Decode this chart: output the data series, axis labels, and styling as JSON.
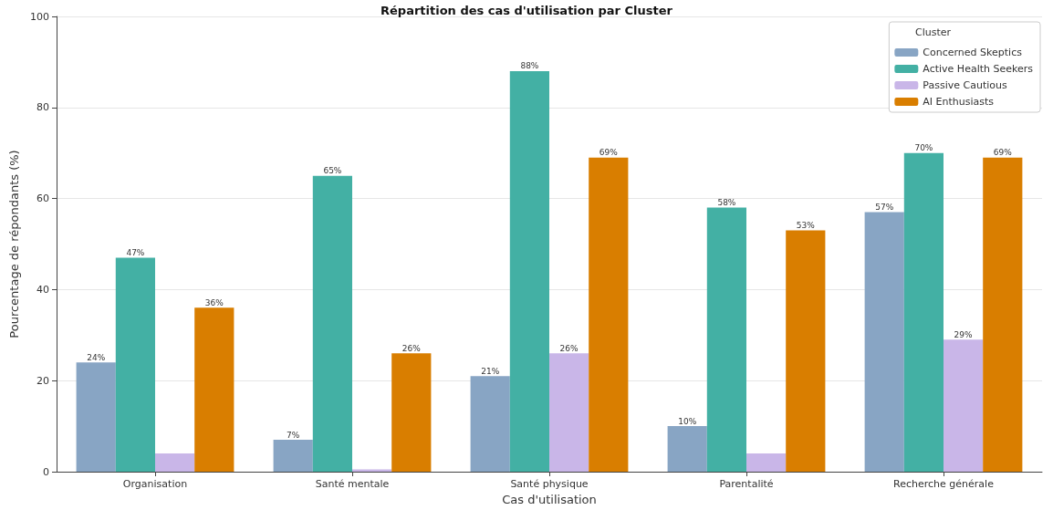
{
  "chart_data": {
    "type": "bar",
    "title": "Répartition des cas d'utilisation par Cluster",
    "xlabel": "Cas d'utilisation",
    "ylabel": "Pourcentage de répondants (%)",
    "legend_title": "Cluster",
    "categories": [
      "Organisation",
      "Santé mentale",
      "Santé physique",
      "Parentalité",
      "Recherche générale"
    ],
    "series": [
      {
        "name": "Concerned Skeptics",
        "color": "#88a5c4",
        "values": [
          24,
          7,
          21,
          10,
          57
        ],
        "value_labels": [
          "24%",
          "7%",
          "21%",
          "10%",
          "57%"
        ]
      },
      {
        "name": "Active Health Seekers",
        "color": "#43b0a4",
        "values": [
          47,
          65,
          88,
          58,
          70
        ],
        "value_labels": [
          "47%",
          "65%",
          "88%",
          "58%",
          "70%"
        ]
      },
      {
        "name": "Passive Cautious",
        "color": "#c9b6e8",
        "values": [
          4,
          0.5,
          26,
          4,
          29
        ],
        "value_labels": [
          null,
          null,
          "26%",
          null,
          "29%"
        ]
      },
      {
        "name": "AI Enthusiasts",
        "color": "#d97e00",
        "values": [
          36,
          26,
          69,
          53,
          69
        ],
        "value_labels": [
          "36%",
          "26%",
          "69%",
          "53%",
          "69%"
        ]
      }
    ],
    "ylim": [
      0,
      100
    ],
    "yticks": [
      0,
      20,
      40,
      60,
      80,
      100
    ],
    "grid": "y",
    "legend": "top right"
  }
}
